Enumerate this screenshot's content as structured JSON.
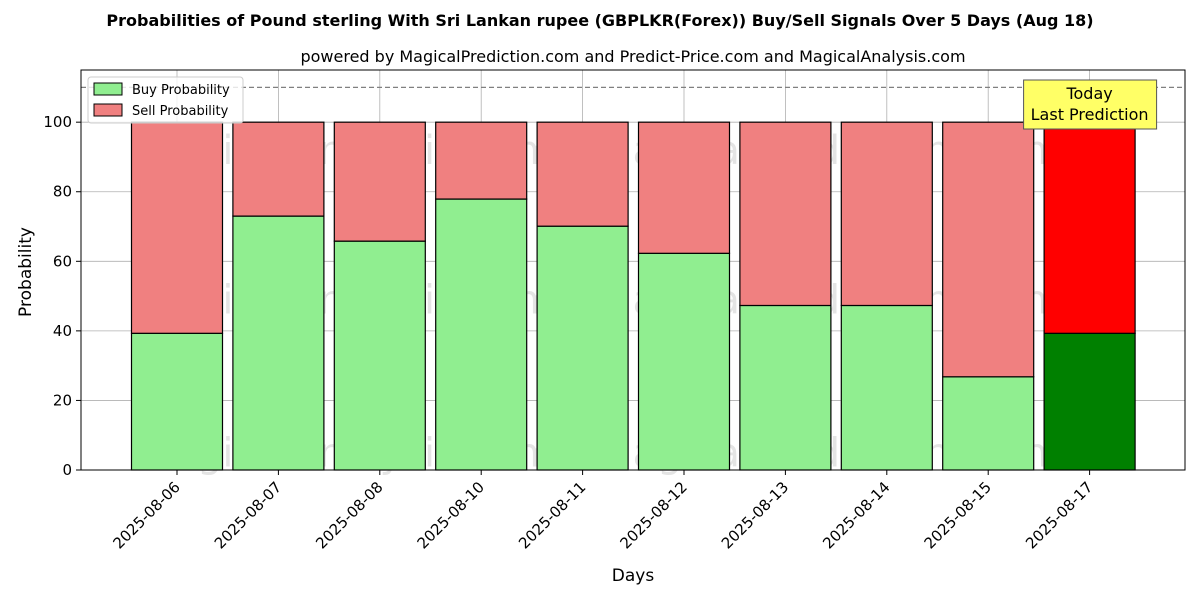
{
  "chart_data": {
    "type": "bar",
    "stacked": true,
    "title": "Probabilities of Pound sterling With Sri Lankan rupee (GBPLKR(Forex)) Buy/Sell Signals Over 5 Days (Aug 18)",
    "subtitle": "powered by MagicalPrediction.com and Predict-Price.com and MagicalAnalysis.com",
    "xlabel": "Days",
    "ylabel": "Probability",
    "ylim": [
      0,
      115
    ],
    "yticks": [
      0,
      20,
      40,
      60,
      80,
      100
    ],
    "grid": true,
    "legend_position": "top-left",
    "reference_line": 110,
    "categories": [
      "2025-08-06",
      "2025-08-07",
      "2025-08-08",
      "2025-08-10",
      "2025-08-11",
      "2025-08-12",
      "2025-08-13",
      "2025-08-14",
      "2025-08-15",
      "2025-08-17"
    ],
    "series": [
      {
        "name": "Buy Probability",
        "values": [
          39.3,
          73.0,
          65.8,
          77.9,
          70.1,
          62.3,
          47.3,
          47.3,
          26.8,
          39.3
        ],
        "color": "#90ee90",
        "highlight_color": "#008000"
      },
      {
        "name": "Sell Probability",
        "values": [
          60.7,
          27.0,
          34.2,
          22.1,
          29.9,
          37.7,
          52.7,
          52.7,
          73.2,
          60.7
        ],
        "color": "#f08080",
        "highlight_color": "#ff0000"
      }
    ],
    "highlight_index": 9,
    "annotation": {
      "line1": "Today",
      "line2": "Last Prediction",
      "color": "#ffff66"
    },
    "watermarks": [
      "MagicalAnalysis.com",
      "MagicalPrediction.com"
    ]
  }
}
